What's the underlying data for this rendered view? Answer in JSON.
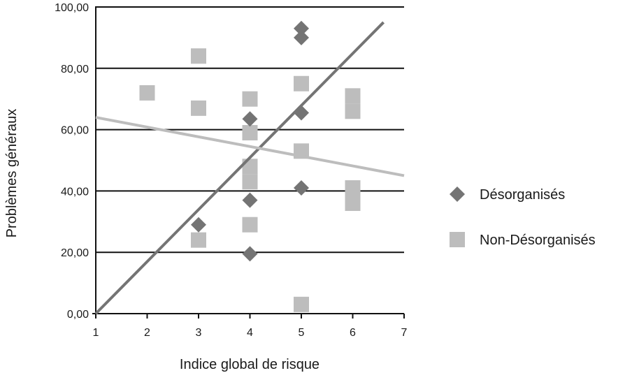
{
  "chart_data": {
    "type": "scatter",
    "xlabel": "Indice global de risque",
    "ylabel": "Problèmes généraux",
    "xlim": [
      1,
      7
    ],
    "ylim": [
      0,
      100
    ],
    "x_ticks": [
      "1",
      "2",
      "3",
      "4",
      "5",
      "6",
      "7"
    ],
    "y_ticks": [
      "0,00",
      "20,00",
      "40,00",
      "60,00",
      "80,00",
      "100,00"
    ],
    "grid": "horizontal",
    "legend_position": "right",
    "series": [
      {
        "name": "Désorganisés",
        "marker": "diamond",
        "color": "#747474",
        "points": [
          {
            "x": 3,
            "y": 29
          },
          {
            "x": 4,
            "y": 63.5
          },
          {
            "x": 4,
            "y": 37
          },
          {
            "x": 4,
            "y": 19.5
          },
          {
            "x": 5,
            "y": 93
          },
          {
            "x": 5,
            "y": 90
          },
          {
            "x": 5,
            "y": 65.5
          },
          {
            "x": 5,
            "y": 41
          }
        ],
        "trendline": [
          {
            "x": 1,
            "y": 0
          },
          {
            "x": 6.6,
            "y": 95
          }
        ]
      },
      {
        "name": "Non-Désorganisés",
        "marker": "square",
        "color": "#bdbdbd",
        "points": [
          {
            "x": 2,
            "y": 72
          },
          {
            "x": 3,
            "y": 84
          },
          {
            "x": 3,
            "y": 67
          },
          {
            "x": 3,
            "y": 24
          },
          {
            "x": 4,
            "y": 70
          },
          {
            "x": 4,
            "y": 59
          },
          {
            "x": 4,
            "y": 48
          },
          {
            "x": 4,
            "y": 43
          },
          {
            "x": 4,
            "y": 29
          },
          {
            "x": 5,
            "y": 75
          },
          {
            "x": 5,
            "y": 53
          },
          {
            "x": 5,
            "y": 3
          },
          {
            "x": 6,
            "y": 71
          },
          {
            "x": 6,
            "y": 66
          },
          {
            "x": 6,
            "y": 41
          },
          {
            "x": 6,
            "y": 36
          }
        ],
        "trendline": [
          {
            "x": 1,
            "y": 64
          },
          {
            "x": 7,
            "y": 45
          }
        ]
      }
    ]
  }
}
